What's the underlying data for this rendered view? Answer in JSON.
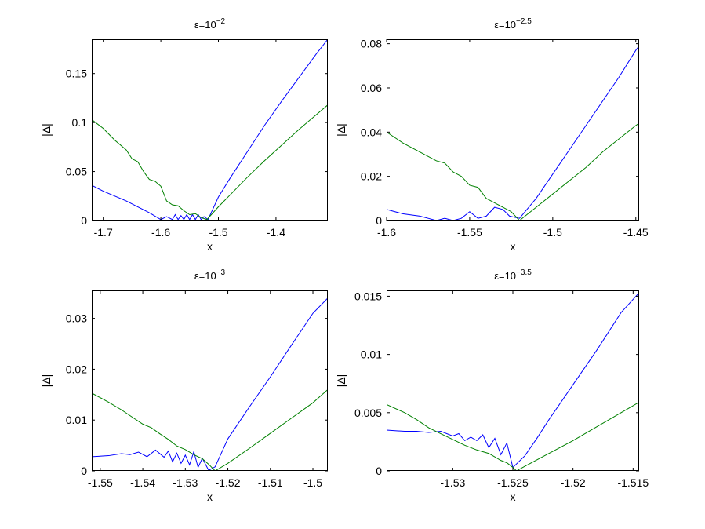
{
  "chart_data": [
    {
      "type": "line",
      "title": "ε=10",
      "title_exp": "−2",
      "xlabel": "x",
      "ylabel": "|Δ|",
      "xlim": [
        -1.72,
        -1.31
      ],
      "ylim": [
        0,
        0.185
      ],
      "xticks": [
        -1.7,
        -1.6,
        -1.5,
        -1.4
      ],
      "xtick_labels": [
        "-1.7",
        "-1.6",
        "-1.5",
        "-1.4"
      ],
      "yticks": [
        0,
        0.05,
        0.1,
        0.15
      ],
      "ytick_labels": [
        "0",
        "0.05",
        "0.1",
        "0.15"
      ],
      "grid": false,
      "series": [
        {
          "color": "#0000ff",
          "x": [
            -1.72,
            -1.7,
            -1.68,
            -1.66,
            -1.64,
            -1.62,
            -1.6,
            -1.59,
            -1.58,
            -1.575,
            -1.57,
            -1.565,
            -1.56,
            -1.555,
            -1.55,
            -1.545,
            -1.54,
            -1.535,
            -1.53,
            -1.525,
            -1.518,
            -1.5,
            -1.48,
            -1.45,
            -1.42,
            -1.39,
            -1.36,
            -1.33,
            -1.31
          ],
          "y": [
            0.036,
            0.03,
            0.025,
            0.02,
            0.014,
            0.008,
            0.001,
            0.004,
            0.001,
            0.006,
            0.001,
            0.005,
            0.001,
            0.006,
            0.001,
            0.006,
            0.001,
            0.006,
            0.001,
            0.004,
            0.001,
            0.024,
            0.043,
            0.07,
            0.097,
            0.122,
            0.146,
            0.17,
            0.185
          ]
        },
        {
          "color": "#008000",
          "x": [
            -1.72,
            -1.7,
            -1.68,
            -1.66,
            -1.65,
            -1.64,
            -1.63,
            -1.62,
            -1.61,
            -1.6,
            -1.59,
            -1.58,
            -1.57,
            -1.56,
            -1.55,
            -1.54,
            -1.535,
            -1.53,
            -1.52,
            -1.5,
            -1.48,
            -1.45,
            -1.42,
            -1.39,
            -1.36,
            -1.33,
            -1.31
          ],
          "y": [
            0.103,
            0.094,
            0.082,
            0.072,
            0.063,
            0.06,
            0.05,
            0.042,
            0.04,
            0.035,
            0.02,
            0.016,
            0.015,
            0.01,
            0.006,
            0.007,
            0.005,
            0.003,
            0.001,
            0.014,
            0.026,
            0.044,
            0.061,
            0.077,
            0.093,
            0.108,
            0.118
          ]
        }
      ]
    },
    {
      "type": "line",
      "title": "ε=10",
      "title_exp": "−2.5",
      "xlabel": "x",
      "ylabel": "|Δ|",
      "xlim": [
        -1.6,
        -1.448
      ],
      "ylim": [
        0,
        0.082
      ],
      "xticks": [
        -1.6,
        -1.55,
        -1.5,
        -1.45
      ],
      "xtick_labels": [
        "-1.6",
        "-1.55",
        "-1.5",
        "-1.45"
      ],
      "yticks": [
        0,
        0.02,
        0.04,
        0.06,
        0.08
      ],
      "ytick_labels": [
        "0",
        "0.02",
        "0.04",
        "0.06",
        "0.08"
      ],
      "grid": false,
      "series": [
        {
          "color": "#0000ff",
          "x": [
            -1.6,
            -1.59,
            -1.58,
            -1.575,
            -1.57,
            -1.565,
            -1.56,
            -1.555,
            -1.55,
            -1.545,
            -1.54,
            -1.535,
            -1.53,
            -1.526,
            -1.52,
            -1.51,
            -1.5,
            -1.49,
            -1.48,
            -1.47,
            -1.46,
            -1.45,
            -1.448
          ],
          "y": [
            0.005,
            0.003,
            0.002,
            0.001,
            0.0,
            0.001,
            0.0,
            0.001,
            0.004,
            0.001,
            0.002,
            0.006,
            0.005,
            0.002,
            0.001,
            0.01,
            0.021,
            0.032,
            0.043,
            0.054,
            0.065,
            0.077,
            0.079
          ]
        },
        {
          "color": "#008000",
          "x": [
            -1.6,
            -1.59,
            -1.58,
            -1.57,
            -1.565,
            -1.56,
            -1.555,
            -1.55,
            -1.545,
            -1.54,
            -1.535,
            -1.53,
            -1.525,
            -1.52,
            -1.51,
            -1.5,
            -1.49,
            -1.48,
            -1.47,
            -1.46,
            -1.45,
            -1.448
          ],
          "y": [
            0.04,
            0.035,
            0.031,
            0.027,
            0.026,
            0.022,
            0.02,
            0.016,
            0.015,
            0.01,
            0.008,
            0.006,
            0.004,
            0.0,
            0.006,
            0.012,
            0.018,
            0.024,
            0.031,
            0.037,
            0.043,
            0.044
          ]
        }
      ]
    },
    {
      "type": "line",
      "title": "ε=10",
      "title_exp": "−3",
      "xlabel": "x",
      "ylabel": "|Δ|",
      "xlim": [
        -1.552,
        -1.4965
      ],
      "ylim": [
        0,
        0.0355
      ],
      "xticks": [
        -1.55,
        -1.54,
        -1.53,
        -1.52,
        -1.51,
        -1.5
      ],
      "xtick_labels": [
        "-1.55",
        "-1.54",
        "-1.53",
        "-1.52",
        "-1.51",
        "-1.5"
      ],
      "yticks": [
        0,
        0.01,
        0.02,
        0.03
      ],
      "ytick_labels": [
        "0",
        "0.01",
        "0.02",
        "0.03"
      ],
      "grid": false,
      "series": [
        {
          "color": "#0000ff",
          "x": [
            -1.552,
            -1.548,
            -1.545,
            -1.543,
            -1.541,
            -1.539,
            -1.537,
            -1.535,
            -1.534,
            -1.533,
            -1.532,
            -1.531,
            -1.53,
            -1.529,
            -1.528,
            -1.527,
            -1.526,
            -1.5245,
            -1.523,
            -1.52,
            -1.515,
            -1.51,
            -1.505,
            -1.5,
            -1.4965
          ],
          "y": [
            0.0028,
            0.003,
            0.0034,
            0.0032,
            0.0037,
            0.0028,
            0.0041,
            0.0027,
            0.0039,
            0.0018,
            0.0035,
            0.0015,
            0.0031,
            0.0012,
            0.0038,
            0.0007,
            0.0025,
            0.0001,
            0.0008,
            0.0063,
            0.0125,
            0.0185,
            0.0248,
            0.031,
            0.034
          ]
        },
        {
          "color": "#008000",
          "x": [
            -1.552,
            -1.548,
            -1.545,
            -1.542,
            -1.54,
            -1.538,
            -1.536,
            -1.534,
            -1.532,
            -1.53,
            -1.528,
            -1.526,
            -1.5245,
            -1.523,
            -1.52,
            -1.515,
            -1.51,
            -1.505,
            -1.5,
            -1.4965
          ],
          "y": [
            0.0153,
            0.0135,
            0.012,
            0.0103,
            0.0092,
            0.0085,
            0.0073,
            0.0062,
            0.0049,
            0.0042,
            0.0032,
            0.0024,
            0.0013,
            0.0,
            0.0015,
            0.0044,
            0.0074,
            0.0104,
            0.0134,
            0.016
          ]
        }
      ]
    },
    {
      "type": "line",
      "title": "ε=10",
      "title_exp": "−3.5",
      "xlabel": "x",
      "ylabel": "|Δ|",
      "xlim": [
        -1.5355,
        -1.5145
      ],
      "ylim": [
        0,
        0.0155
      ],
      "xticks": [
        -1.53,
        -1.525,
        -1.52,
        -1.515
      ],
      "xtick_labels": [
        "-1.53",
        "-1.525",
        "-1.52",
        "-1.515"
      ],
      "yticks": [
        0,
        0.005,
        0.01,
        0.015
      ],
      "ytick_labels": [
        "0",
        "0.005",
        "0.01",
        "0.015"
      ],
      "grid": false,
      "series": [
        {
          "color": "#0000ff",
          "x": [
            -1.5355,
            -1.534,
            -1.533,
            -1.532,
            -1.531,
            -1.53,
            -1.5295,
            -1.529,
            -1.5285,
            -1.528,
            -1.5275,
            -1.527,
            -1.5265,
            -1.526,
            -1.5255,
            -1.525,
            -1.524,
            -1.523,
            -1.522,
            -1.52,
            -1.518,
            -1.516,
            -1.5145
          ],
          "y": [
            0.0035,
            0.0034,
            0.0034,
            0.0033,
            0.0034,
            0.003,
            0.0032,
            0.0026,
            0.0029,
            0.0026,
            0.0031,
            0.002,
            0.0028,
            0.0014,
            0.0024,
            0.0003,
            0.0013,
            0.0028,
            0.0044,
            0.0074,
            0.0104,
            0.0136,
            0.0153
          ]
        },
        {
          "color": "#008000",
          "x": [
            -1.5355,
            -1.534,
            -1.533,
            -1.532,
            -1.531,
            -1.53,
            -1.529,
            -1.528,
            -1.527,
            -1.526,
            -1.5255,
            -1.525,
            -1.5247,
            -1.524,
            -1.522,
            -1.52,
            -1.518,
            -1.516,
            -1.5145
          ],
          "y": [
            0.0057,
            0.005,
            0.0044,
            0.0037,
            0.0032,
            0.0027,
            0.0022,
            0.0018,
            0.0015,
            0.0009,
            0.0007,
            0.0003,
            0.0,
            0.0004,
            0.0015,
            0.0026,
            0.0038,
            0.005,
            0.0059
          ]
        }
      ]
    }
  ]
}
